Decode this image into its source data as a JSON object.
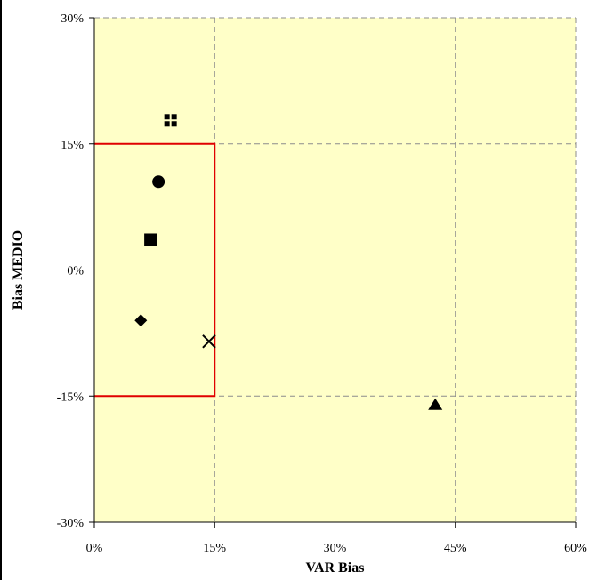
{
  "chart_data": {
    "type": "scatter",
    "title": "",
    "xlabel": "VAR Bias",
    "ylabel": "Bias MEDIO",
    "xlim": [
      0,
      60
    ],
    "ylim": [
      -30,
      30
    ],
    "x_ticks": [
      "0%",
      "15%",
      "30%",
      "45%",
      "60%"
    ],
    "x_tick_values": [
      0,
      15,
      30,
      45,
      60
    ],
    "y_ticks": [
      "30%",
      "15%",
      "0%",
      "-15%",
      "-30%"
    ],
    "y_tick_values": [
      30,
      15,
      0,
      -15,
      -30
    ],
    "grid": true,
    "grid_style": "dashed",
    "background_color": "#ffffc8",
    "points": [
      {
        "marker": "plus-square",
        "x": 9.5,
        "y": 17.8
      },
      {
        "marker": "circle",
        "x": 8.0,
        "y": 10.5
      },
      {
        "marker": "square",
        "x": 7.0,
        "y": 3.6
      },
      {
        "marker": "diamond",
        "x": 5.8,
        "y": -6.0
      },
      {
        "marker": "x-cross",
        "x": 14.3,
        "y": -8.5
      },
      {
        "marker": "triangle",
        "x": 42.5,
        "y": -16.0
      }
    ],
    "target_region": {
      "x": [
        0,
        15
      ],
      "y": [
        -15,
        15
      ],
      "color": "#e00000"
    }
  }
}
